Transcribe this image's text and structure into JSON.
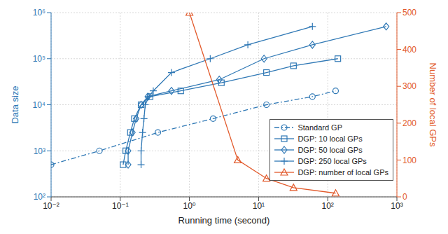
{
  "chart_data": {
    "type": "line",
    "xlabel": "Running time (second)",
    "ylabel": "Data size",
    "y2label": "Number of local GPs",
    "log": true,
    "grid": true,
    "legend": "lower right",
    "xlim": [
      0.01,
      1000
    ],
    "xticks": [
      {
        "value": 0.01,
        "label": "10⁻²"
      },
      {
        "value": 0.1,
        "label": "10⁻¹"
      },
      {
        "value": 1,
        "label": "10⁰"
      },
      {
        "value": 10,
        "label": "10¹"
      },
      {
        "value": 100,
        "label": "10²"
      },
      {
        "value": 1000,
        "label": "10³"
      }
    ],
    "ylim": [
      100,
      1000000
    ],
    "yticks": [
      {
        "value": 100,
        "label": "10²"
      },
      {
        "value": 1000,
        "label": "10³"
      },
      {
        "value": 10000,
        "label": "10⁴"
      },
      {
        "value": 100000,
        "label": "10⁵"
      },
      {
        "value": 1000000,
        "label": "10⁶"
      }
    ],
    "y2lim": [
      0,
      500
    ],
    "y2ticks": [
      0,
      100,
      200,
      300,
      400,
      500
    ],
    "series": [
      {
        "name": "Standard GP",
        "color": "#2f78b5",
        "marker": "circle",
        "line_style": "dashdot",
        "x": [
          0.01,
          0.05,
          0.35,
          2.2,
          13,
          60,
          130
        ],
        "values": [
          500,
          1000,
          2500,
          5000,
          10000,
          15000,
          20000
        ]
      },
      {
        "name": "DGP: 10 local GPs",
        "color": "#2f78b5",
        "marker": "square",
        "line_style": "solid",
        "x": [
          0.11,
          0.12,
          0.14,
          0.16,
          0.2,
          0.27,
          0.75,
          2.9,
          13,
          32,
          140
        ],
        "values": [
          500,
          1000,
          2500,
          5000,
          10000,
          15000,
          20000,
          30000,
          50000,
          70000,
          100000
        ]
      },
      {
        "name": "DGP: 50 local GPs",
        "color": "#2f78b5",
        "marker": "diamond",
        "line_style": "solid",
        "x": [
          0.13,
          0.13,
          0.15,
          0.17,
          0.2,
          0.25,
          0.55,
          2.7,
          12,
          60,
          700
        ],
        "values": [
          500,
          1000,
          2500,
          5000,
          10000,
          15000,
          20000,
          35000,
          100000,
          200000,
          500000
        ]
      },
      {
        "name": "DGP: 250 local GPs",
        "color": "#2f78b5",
        "marker": "plus",
        "line_style": "solid",
        "x": [
          0.2,
          0.2,
          0.21,
          0.22,
          0.23,
          0.26,
          0.3,
          0.55,
          2,
          7,
          60
        ],
        "values": [
          500,
          1000,
          2500,
          5000,
          10000,
          15000,
          20000,
          50000,
          100000,
          200000,
          500000
        ]
      },
      {
        "name": "DGP: number of local GPs",
        "color": "#e2592a",
        "marker": "triangle",
        "line_style": "solid",
        "axis": "y2",
        "x": [
          1,
          5,
          13,
          32,
          130
        ],
        "values": [
          500,
          100,
          50,
          25,
          10
        ]
      }
    ]
  }
}
